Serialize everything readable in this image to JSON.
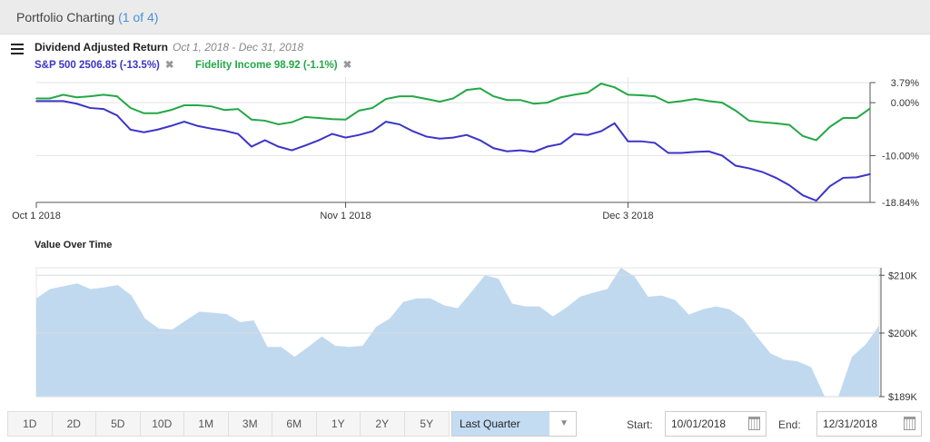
{
  "header": {
    "title": "Portfolio Charting",
    "count": "(1 of 4)"
  },
  "chart_header": {
    "title": "Dividend Adjusted Return",
    "range": "Oct 1, 2018 - Dec 31, 2018",
    "legend": [
      {
        "label": "S&P 500 2506.85 (-13.5%)",
        "color": "#3b35c8"
      },
      {
        "label": "Fidelity Income 98.92 (-1.1%)",
        "color": "#22a845"
      }
    ],
    "remove_glyph": "✖"
  },
  "chart_data": [
    {
      "type": "line",
      "title": "Dividend Adjusted Return",
      "ylim": [
        -18.84,
        3.79
      ],
      "y_ticks": [
        "3.79%",
        "0.00%",
        "-10.00%",
        "-18.84%"
      ],
      "y_tick_values": [
        3.79,
        0,
        -10,
        -18.84
      ],
      "x_ticks": [
        {
          "label": "Oct 1 2018",
          "date": "2018-10-01"
        },
        {
          "label": "Nov 1 2018",
          "date": "2018-11-01"
        },
        {
          "label": "Dec 3 2018",
          "date": "2018-12-03"
        }
      ],
      "x": [
        "10-01",
        "10-02",
        "10-03",
        "10-04",
        "10-05",
        "10-08",
        "10-09",
        "10-10",
        "10-11",
        "10-12",
        "10-15",
        "10-16",
        "10-17",
        "10-18",
        "10-19",
        "10-22",
        "10-23",
        "10-24",
        "10-25",
        "10-26",
        "10-29",
        "10-30",
        "10-31",
        "11-01",
        "11-02",
        "11-05",
        "11-06",
        "11-07",
        "11-08",
        "11-09",
        "11-12",
        "11-13",
        "11-14",
        "11-15",
        "11-16",
        "11-19",
        "11-20",
        "11-21",
        "11-23",
        "11-26",
        "11-27",
        "11-28",
        "11-29",
        "11-30",
        "12-03",
        "12-04",
        "12-06",
        "12-07",
        "12-10",
        "12-11",
        "12-12",
        "12-13",
        "12-14",
        "12-17",
        "12-18",
        "12-19",
        "12-20",
        "12-21",
        "12-24",
        "12-26",
        "12-27",
        "12-28",
        "12-31"
      ],
      "series": [
        {
          "name": "S&P 500",
          "color": "#3b35c8",
          "values": [
            0.3,
            0.3,
            0.3,
            -0.2,
            -1.0,
            -1.2,
            -2.4,
            -5.1,
            -5.6,
            -5.1,
            -4.4,
            -3.6,
            -4.4,
            -4.9,
            -5.3,
            -5.9,
            -8.3,
            -7.1,
            -8.3,
            -9.0,
            -8.1,
            -7.1,
            -5.9,
            -6.6,
            -6.1,
            -5.4,
            -3.6,
            -4.1,
            -5.4,
            -6.4,
            -6.8,
            -6.6,
            -6.1,
            -7.1,
            -8.6,
            -9.2,
            -9.0,
            -9.3,
            -8.3,
            -7.8,
            -5.9,
            -6.1,
            -5.4,
            -3.9,
            -7.3,
            -7.3,
            -7.6,
            -9.5,
            -9.5,
            -9.3,
            -9.2,
            -10.0,
            -11.9,
            -12.4,
            -13.1,
            -14.2,
            -15.6,
            -17.5,
            -18.5,
            -15.8,
            -14.2,
            -14.1,
            -13.5
          ]
        },
        {
          "name": "Fidelity Income",
          "color": "#22a845",
          "values": [
            0.8,
            0.8,
            1.5,
            1.0,
            1.2,
            1.5,
            1.2,
            -1.0,
            -2.0,
            -2.0,
            -1.4,
            -0.5,
            -0.5,
            -0.7,
            -1.4,
            -1.2,
            -3.2,
            -3.4,
            -4.1,
            -3.7,
            -2.7,
            -2.9,
            -3.1,
            -3.2,
            -1.5,
            -1.0,
            0.7,
            1.2,
            1.2,
            0.7,
            0.2,
            0.8,
            2.4,
            2.7,
            1.2,
            0.5,
            0.5,
            -0.2,
            0.0,
            1.0,
            1.5,
            1.9,
            3.6,
            2.9,
            1.5,
            1.4,
            1.2,
            0.0,
            0.3,
            0.7,
            0.3,
            0.0,
            -1.5,
            -3.4,
            -3.7,
            -3.9,
            -4.2,
            -6.3,
            -7.1,
            -4.6,
            -2.9,
            -2.9,
            -1.1
          ]
        }
      ]
    },
    {
      "type": "area",
      "title": "Value Over Time",
      "ylim": [
        189,
        211.3
      ],
      "y_ticks": [
        "$210K",
        "$200K",
        "$189K"
      ],
      "y_tick_values": [
        210,
        200,
        189
      ],
      "color": "#c0d9ef",
      "values": [
        206.0,
        207.6,
        208.1,
        208.6,
        207.6,
        207.9,
        208.3,
        206.5,
        202.5,
        200.8,
        200.6,
        202.2,
        203.7,
        203.5,
        203.3,
        201.9,
        202.2,
        197.6,
        197.6,
        195.9,
        197.6,
        199.4,
        197.8,
        197.6,
        197.8,
        201.1,
        202.5,
        205.4,
        206.0,
        206.0,
        204.8,
        204.3,
        207.1,
        210.0,
        209.4,
        205.1,
        204.6,
        204.6,
        202.9,
        204.4,
        206.3,
        207.0,
        207.6,
        211.3,
        209.8,
        206.3,
        206.5,
        205.7,
        203.2,
        204.1,
        204.6,
        204.1,
        202.5,
        199.4,
        196.5,
        195.4,
        195.1,
        194.1,
        189.0,
        188.3,
        195.9,
        198.0,
        201.3
      ]
    }
  ],
  "range_buttons": [
    "1D",
    "2D",
    "5D",
    "10D",
    "1M",
    "3M",
    "6M",
    "1Y",
    "2Y",
    "5Y"
  ],
  "period_select": {
    "value": "Last Quarter"
  },
  "start": {
    "label": "Start:",
    "value": "10/01/2018"
  },
  "end": {
    "label": "End:",
    "value": "12/31/2018"
  }
}
